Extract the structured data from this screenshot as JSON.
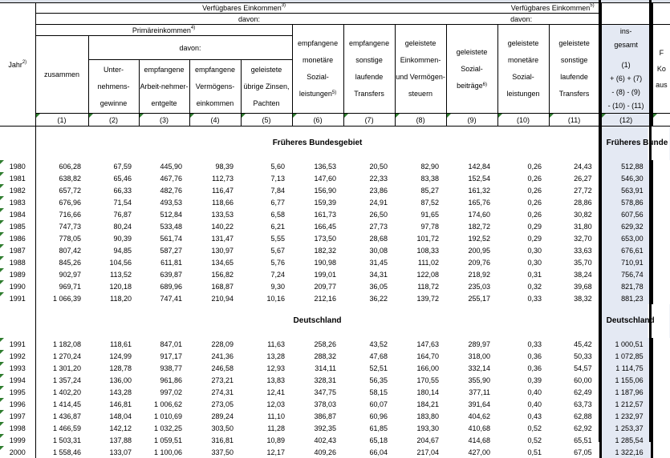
{
  "header": {
    "jahr": "Jahr",
    "jahr_note": "2)",
    "verfuegbar_left": "Verfügbares Einkommen",
    "verfuegbar_left_note": "3)",
    "verfuegbar_right": "Verfügbares Einkommen",
    "verfuegbar_right_note": "5)",
    "davon": "davon:",
    "primaer": "Primäreinkommen",
    "primaer_note": "4)",
    "columns": [
      {
        "label": "zusammen",
        "num": "(1)"
      },
      {
        "label": "Unter-nehmens-gewinne",
        "num": "(2)"
      },
      {
        "label": "empfangene Arbeit-nehmer-entgelte",
        "num": "(3)"
      },
      {
        "label": "empfangene Vermögens-einkommen",
        "num": "(4)"
      },
      {
        "label": "geleistete übrige Zinsen, Pachten",
        "num": "(5)"
      },
      {
        "label": "empfangene monetäre Sozial-leistungen",
        "note": "5)",
        "num": "(6)"
      },
      {
        "label": "empfangene sonstige laufende Transfers",
        "num": "(7)"
      },
      {
        "label": "geleistete Einkommen- und Vermögen-steuern",
        "num": "(8)"
      },
      {
        "label": "geleistete Sozial-beiträge",
        "note": "6)",
        "num": "(9)"
      },
      {
        "label": "geleistete monetäre Sozial-leistungen",
        "num": "(10)"
      },
      {
        "label": "geleistete sonstige laufende Transfers",
        "num": "(11)"
      }
    ],
    "insgesamt": {
      "label": "ins-gesamt",
      "formula": [
        "(1)",
        "+ (6) + (7)",
        "- (8) - (9)",
        "- (10) - (11)"
      ],
      "num": "(12)"
    },
    "next_col_partial": [
      "F",
      "Ko",
      "aus"
    ]
  },
  "sections": [
    {
      "title": "Früheres Bundesgebiet",
      "title_col12": "Früheres Bunde",
      "rows": [
        [
          "1980",
          "606,28",
          "67,59",
          "445,90",
          "98,39",
          "5,60",
          "136,53",
          "20,50",
          "82,90",
          "142,84",
          "0,26",
          "24,43",
          "512,88"
        ],
        [
          "1981",
          "638,82",
          "65,46",
          "467,76",
          "112,73",
          "7,13",
          "147,60",
          "22,33",
          "83,38",
          "152,54",
          "0,26",
          "26,27",
          "546,30"
        ],
        [
          "1982",
          "657,72",
          "66,33",
          "482,76",
          "116,47",
          "7,84",
          "156,90",
          "23,86",
          "85,27",
          "161,32",
          "0,26",
          "27,72",
          "563,91"
        ],
        [
          "1983",
          "676,96",
          "71,54",
          "493,53",
          "118,66",
          "6,77",
          "159,39",
          "24,91",
          "87,52",
          "165,76",
          "0,26",
          "28,86",
          "578,86"
        ],
        [
          "1984",
          "716,66",
          "76,87",
          "512,84",
          "133,53",
          "6,58",
          "161,73",
          "26,50",
          "91,65",
          "174,60",
          "0,26",
          "30,82",
          "607,56"
        ],
        [
          "1985",
          "747,73",
          "80,24",
          "533,48",
          "140,22",
          "6,21",
          "166,45",
          "27,73",
          "97,78",
          "182,72",
          "0,29",
          "31,80",
          "629,32"
        ],
        [
          "1986",
          "778,05",
          "90,39",
          "561,74",
          "131,47",
          "5,55",
          "173,50",
          "28,68",
          "101,72",
          "192,52",
          "0,29",
          "32,70",
          "653,00"
        ],
        [
          "1987",
          "807,42",
          "94,85",
          "587,27",
          "130,97",
          "5,67",
          "182,32",
          "30,08",
          "108,33",
          "200,95",
          "0,30",
          "33,63",
          "676,61"
        ],
        [
          "1988",
          "845,26",
          "104,56",
          "611,81",
          "134,65",
          "5,76",
          "190,98",
          "31,45",
          "111,02",
          "209,76",
          "0,30",
          "35,70",
          "710,91"
        ],
        [
          "1989",
          "902,97",
          "113,52",
          "639,87",
          "156,82",
          "7,24",
          "199,01",
          "34,31",
          "122,08",
          "218,92",
          "0,31",
          "38,24",
          "756,74"
        ],
        [
          "1990",
          "969,71",
          "120,18",
          "689,96",
          "168,87",
          "9,30",
          "209,77",
          "36,05",
          "118,72",
          "235,03",
          "0,32",
          "39,68",
          "821,78"
        ],
        [
          "1991",
          "1 066,39",
          "118,20",
          "747,41",
          "210,94",
          "10,16",
          "212,16",
          "36,22",
          "139,72",
          "255,17",
          "0,33",
          "38,32",
          "881,23"
        ]
      ]
    },
    {
      "title": "Deutschland",
      "title_col12": "Deutschland",
      "rows": [
        [
          "1991",
          "1 182,08",
          "118,61",
          "847,01",
          "228,09",
          "11,63",
          "258,26",
          "43,52",
          "147,63",
          "289,97",
          "0,33",
          "45,42",
          "1 000,51"
        ],
        [
          "1992",
          "1 270,24",
          "124,99",
          "917,17",
          "241,36",
          "13,28",
          "288,32",
          "47,68",
          "164,70",
          "318,00",
          "0,36",
          "50,33",
          "1 072,85"
        ],
        [
          "1993",
          "1 301,20",
          "128,78",
          "938,77",
          "246,58",
          "12,93",
          "314,11",
          "52,51",
          "166,00",
          "332,14",
          "0,36",
          "54,57",
          "1 114,75"
        ],
        [
          "1994",
          "1 357,24",
          "136,00",
          "961,86",
          "273,21",
          "13,83",
          "328,31",
          "56,35",
          "170,55",
          "355,90",
          "0,39",
          "60,00",
          "1 155,06"
        ],
        [
          "1995",
          "1 402,20",
          "143,28",
          "997,02",
          "274,31",
          "12,41",
          "347,75",
          "58,15",
          "180,14",
          "377,11",
          "0,40",
          "62,49",
          "1 187,96"
        ],
        [
          "1996",
          "1 414,45",
          "146,81",
          "1 006,62",
          "273,05",
          "12,03",
          "378,03",
          "60,07",
          "184,21",
          "391,64",
          "0,40",
          "63,73",
          "1 212,57"
        ],
        [
          "1997",
          "1 436,87",
          "148,04",
          "1 010,69",
          "289,24",
          "11,10",
          "386,87",
          "60,96",
          "183,80",
          "404,62",
          "0,43",
          "62,88",
          "1 232,97"
        ],
        [
          "1998",
          "1 466,59",
          "142,12",
          "1 032,25",
          "303,50",
          "11,28",
          "392,35",
          "61,85",
          "193,30",
          "410,68",
          "0,52",
          "62,92",
          "1 253,37"
        ],
        [
          "1999",
          "1 503,31",
          "137,88",
          "1 059,51",
          "316,81",
          "10,89",
          "402,43",
          "65,18",
          "204,67",
          "414,68",
          "0,52",
          "65,51",
          "1 285,54"
        ],
        [
          "2000",
          "1 558,46",
          "133,07",
          "1 100,06",
          "337,50",
          "12,17",
          "409,26",
          "66,04",
          "217,04",
          "427,00",
          "0,51",
          "67,05",
          "1 322,16"
        ]
      ]
    }
  ],
  "colors": {
    "highlight_column": "#e4e9f3",
    "comment_marker": "#2f7d2f"
  }
}
